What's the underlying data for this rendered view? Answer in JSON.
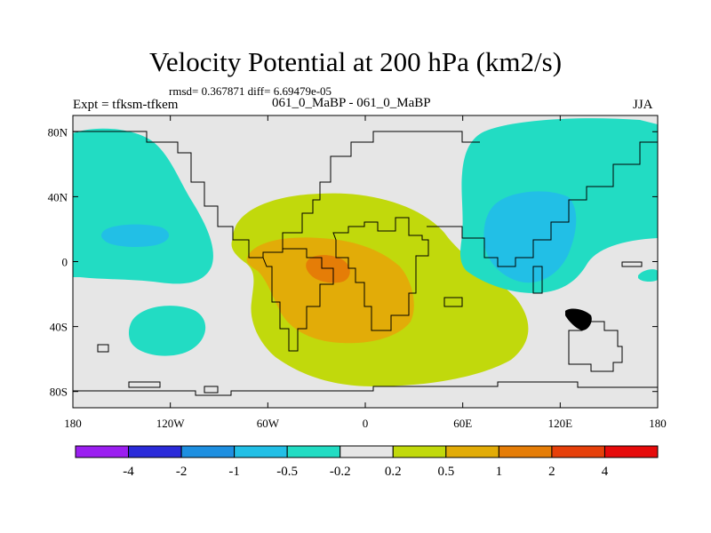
{
  "chart_data": {
    "type": "heatmap",
    "title": "Velocity Potential at 200 hPa (km2/s)",
    "stats": "rmsd= 0.367871 diff= 6.69479e-05",
    "experiment": "Expt = tfksm-tfkem",
    "cases": "061_0_MaBP - 061_0_MaBP",
    "season": "JJA",
    "xlim": [
      -180,
      180
    ],
    "ylim": [
      -90,
      90
    ],
    "xticks": [
      {
        "value": -180,
        "label": "180"
      },
      {
        "value": -120,
        "label": "120W"
      },
      {
        "value": -60,
        "label": "60W"
      },
      {
        "value": 0,
        "label": "0"
      },
      {
        "value": 60,
        "label": "60E"
      },
      {
        "value": 120,
        "label": "120E"
      },
      {
        "value": 180,
        "label": "180"
      }
    ],
    "yticks": [
      {
        "value": 80,
        "label": "80N"
      },
      {
        "value": 40,
        "label": "40N"
      },
      {
        "value": 0,
        "label": "0"
      },
      {
        "value": -40,
        "label": "40S"
      },
      {
        "value": -80,
        "label": "80S"
      }
    ],
    "levels": [
      "-4",
      "-2",
      "-1",
      "-0.5",
      "-0.2",
      "0.2",
      "0.5",
      "1",
      "2",
      "4"
    ],
    "colors": [
      "#9b1ff0",
      "#2b2bd9",
      "#1e8fe0",
      "#22bfe6",
      "#22dcc3",
      "#e6e6e6",
      "#c1d90c",
      "#e2ac08",
      "#e57d07",
      "#e6400a",
      "#e60b0b"
    ],
    "regions": [
      {
        "label": "0.2 to 0.5",
        "level": 6,
        "center": [
          -15,
          -15
        ]
      },
      {
        "label": "0.5 to 1",
        "level": 7,
        "center": [
          -20,
          -15
        ]
      },
      {
        "label": "1 to 2",
        "level": 8,
        "center": [
          -25,
          2
        ]
      },
      {
        "label": "-0.5 to -0.2",
        "level": 4,
        "center": [
          -155,
          30
        ]
      },
      {
        "label": "-0.5 to -0.2",
        "level": 4,
        "center": [
          -145,
          -40
        ]
      },
      {
        "label": "-1 to -0.5",
        "level": 3,
        "center": [
          -145,
          18
        ]
      },
      {
        "label": "-0.5 to -0.2",
        "level": 4,
        "center": [
          110,
          40
        ]
      },
      {
        "label": "-1 to -0.5",
        "level": 3,
        "center": [
          103,
          20
        ]
      },
      {
        "label": "-0.5 to -0.2",
        "level": 4,
        "center": [
          140,
          -38
        ]
      }
    ]
  }
}
